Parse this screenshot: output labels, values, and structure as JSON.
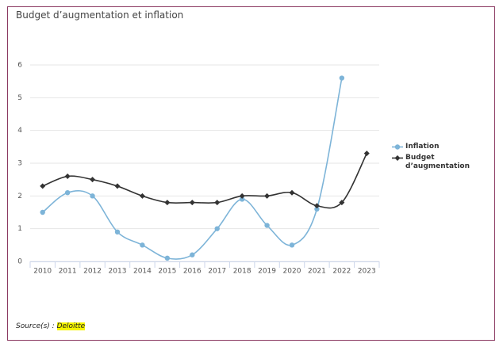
{
  "chart_data": {
    "type": "line",
    "title": "Budget d’augmentation et inflation",
    "categories": [
      "2010",
      "2011",
      "2012",
      "2013",
      "2014",
      "2015",
      "2016",
      "2017",
      "2018",
      "2019",
      "2020",
      "2021",
      "2022",
      "2023"
    ],
    "series": [
      {
        "name": "Inflation",
        "color": "#7db4d8",
        "marker": "circle",
        "values": [
          1.5,
          2.1,
          2.0,
          0.9,
          0.5,
          0.1,
          0.2,
          1.0,
          1.9,
          1.1,
          0.5,
          1.6,
          5.6,
          null
        ]
      },
      {
        "name": "Budget d’augmentation",
        "color": "#333333",
        "marker": "diamond",
        "values": [
          2.3,
          2.6,
          2.5,
          2.3,
          2.0,
          1.8,
          1.8,
          1.8,
          2.0,
          2.0,
          2.1,
          1.7,
          1.8,
          3.3
        ]
      }
    ],
    "ylim": [
      0,
      6
    ],
    "yticks": [
      0,
      1,
      2,
      3,
      4,
      5,
      6
    ],
    "grid": true,
    "smooth": true,
    "legend": "right",
    "source_label": "Source(s) :",
    "source": "Deloitte"
  }
}
